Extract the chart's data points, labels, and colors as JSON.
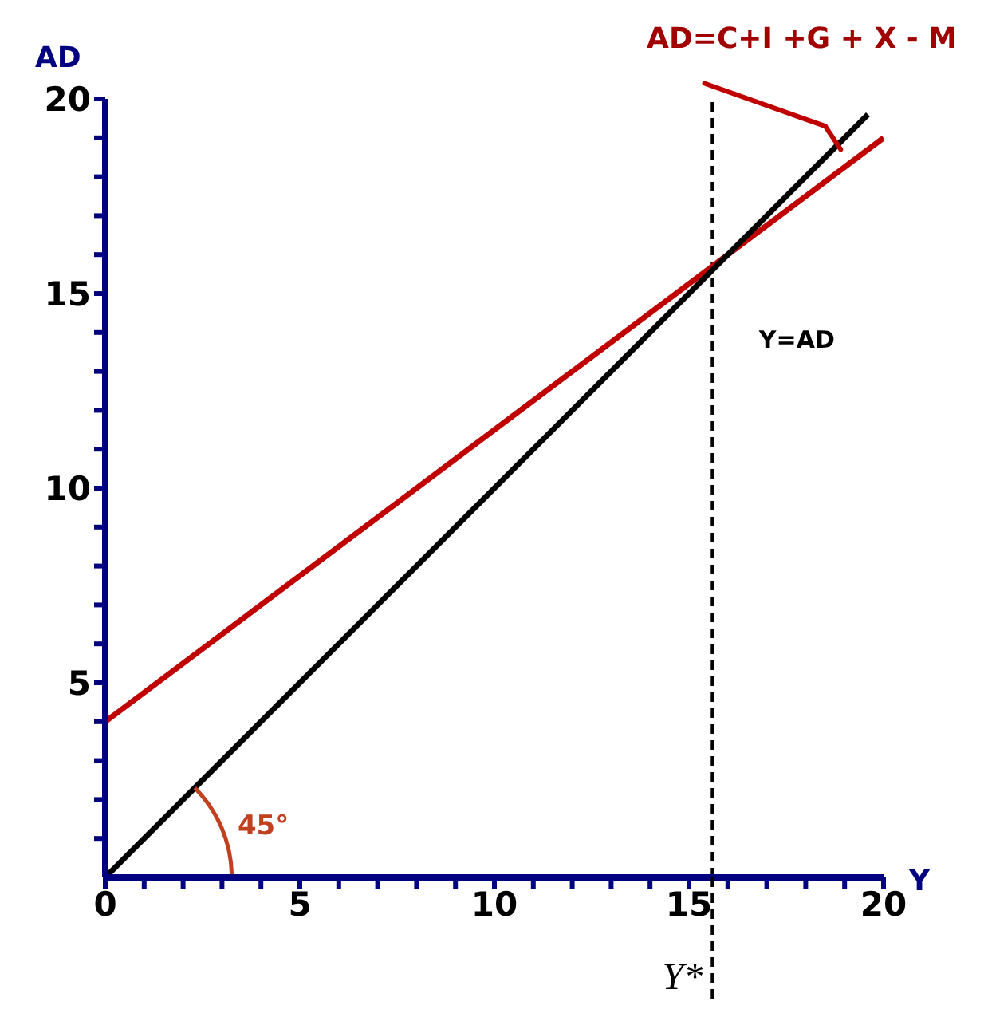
{
  "chart_data": {
    "type": "line",
    "xlabel": "Y",
    "ylabel": "AD",
    "xlim": [
      0,
      20
    ],
    "ylim": [
      0,
      20
    ],
    "xticks": [
      0,
      {
        "value": 1,
        "label": null
      },
      {
        "value": 2,
        "label": null
      },
      {
        "value": 3,
        "label": null
      },
      {
        "value": 4,
        "label": null
      },
      5,
      {
        "value": 6,
        "label": null
      },
      {
        "value": 7,
        "label": null
      },
      {
        "value": 8,
        "label": null
      },
      {
        "value": 9,
        "label": null
      },
      10,
      {
        "value": 11,
        "label": null
      },
      {
        "value": 12,
        "label": null
      },
      {
        "value": 13,
        "label": null
      },
      {
        "value": 14,
        "label": null
      },
      15,
      {
        "value": 16,
        "label": null
      },
      {
        "value": 17,
        "label": null
      },
      {
        "value": 18,
        "label": null
      },
      {
        "value": 19,
        "label": null
      },
      20
    ],
    "yticks": [
      {
        "value": 1,
        "label": null
      },
      {
        "value": 2,
        "label": null
      },
      {
        "value": 3,
        "label": null
      },
      {
        "value": 4,
        "label": null
      },
      5,
      {
        "value": 6,
        "label": null
      },
      {
        "value": 7,
        "label": null
      },
      {
        "value": 8,
        "label": null
      },
      {
        "value": 9,
        "label": null
      },
      10,
      {
        "value": 11,
        "label": null
      },
      {
        "value": 12,
        "label": null
      },
      {
        "value": 13,
        "label": null
      },
      {
        "value": 14,
        "label": null
      },
      15,
      {
        "value": 16,
        "label": null
      },
      {
        "value": 17,
        "label": null
      },
      {
        "value": 18,
        "label": null
      },
      {
        "value": 19,
        "label": null
      },
      20
    ],
    "series": [
      {
        "color": "#c00000",
        "x": [
          0,
          20
        ],
        "values": [
          4,
          19
        ]
      },
      {
        "color": "#000000",
        "x": [
          0,
          19.6
        ],
        "values": [
          0,
          19.6
        ]
      }
    ],
    "ref_lines": [
      {
        "axis": "x",
        "value": 15.6,
        "label": "Y*",
        "color": "#000000",
        "line_style": "dashed"
      }
    ],
    "annotations": [
      "AD=C+I +G + X - M",
      "Y=AD",
      {
        "text": "45°",
        "x": 2.3,
        "y": 2.3
      }
    ],
    "grid": false,
    "legend": false,
    "marker": "none",
    "line_style": "solid"
  }
}
